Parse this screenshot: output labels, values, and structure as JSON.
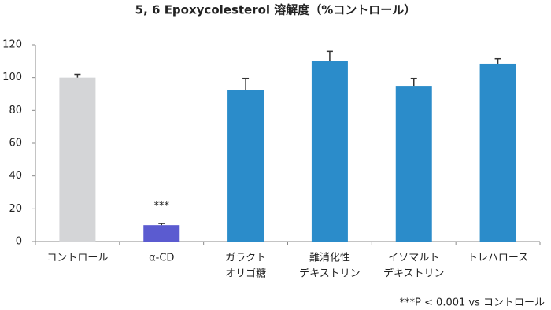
{
  "chart_data": {
    "type": "bar",
    "title": "5, 6 Epoxycolesterol 溶解度（%コントロール）",
    "categories": [
      [
        "コントロール"
      ],
      [
        "α-CD"
      ],
      [
        "ガラクト",
        "オリゴ糖"
      ],
      [
        "難消化性",
        "デキストリン"
      ],
      [
        "イソマルト",
        "デキストリン"
      ],
      [
        "トレハロース"
      ]
    ],
    "values": [
      100,
      10,
      92.5,
      110,
      95,
      108.5
    ],
    "errors": [
      2,
      1,
      7,
      6,
      4.5,
      3
    ],
    "colors": [
      "#d4d5d7",
      "#5b5bd0",
      "#2b8cca",
      "#2b8cca",
      "#2b8cca",
      "#2b8cca"
    ],
    "ylim": [
      0,
      120
    ],
    "yticks": [
      0,
      20,
      40,
      60,
      80,
      100,
      120
    ],
    "grid": false,
    "annotations": [
      {
        "text": "***",
        "index": 1
      }
    ],
    "footnote": "***P < 0.001 vs コントロール"
  }
}
